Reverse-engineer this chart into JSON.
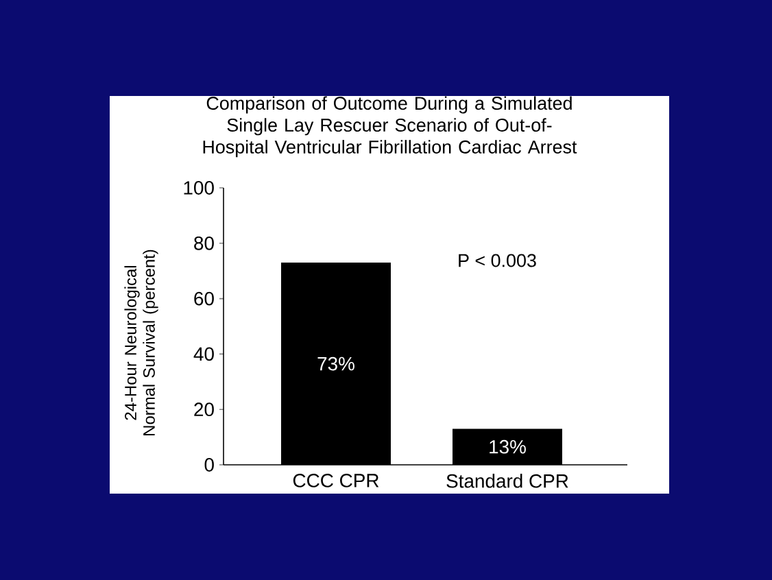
{
  "chart_data": {
    "type": "bar",
    "title": "Comparison of Outcome During a Simulated Single Lay Rescuer Scenario of Out-of-Hospital Ventricular Fibrillation Cardiac Arrest",
    "ylabel": "24-Hour Neurological Normal Survival (percent)",
    "categories": [
      "CCC CPR",
      "Standard CPR"
    ],
    "values": [
      73,
      13
    ],
    "value_labels": [
      "73%",
      "13%"
    ],
    "color": "#000000",
    "ylim": [
      0,
      100
    ],
    "yticks": [
      0,
      20,
      40,
      60,
      80,
      100
    ],
    "annotations": [
      "P < 0.003"
    ],
    "grid": false
  }
}
